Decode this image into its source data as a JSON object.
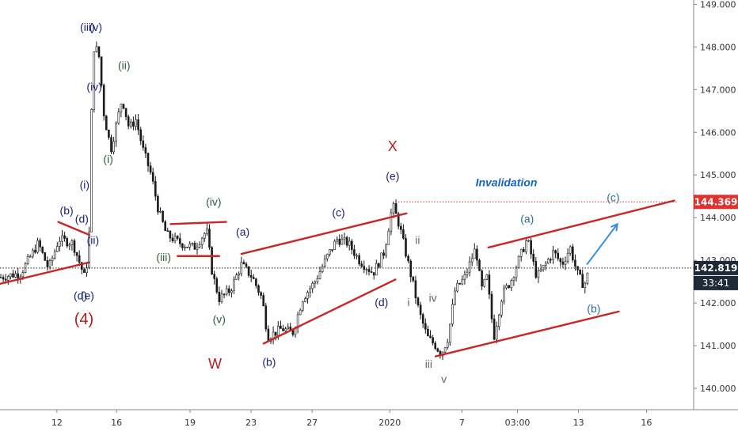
{
  "chart_data": {
    "type": "candlestick",
    "instrument_note": "",
    "y_axis": {
      "position": "right",
      "range": [
        139.5,
        149.1
      ],
      "ticks": [
        {
          "value": 149.0,
          "label": "149.000"
        },
        {
          "value": 148.0,
          "label": "148.000"
        },
        {
          "value": 147.0,
          "label": "147.000"
        },
        {
          "value": 146.0,
          "label": "146.000"
        },
        {
          "value": 145.0,
          "label": "145.000"
        },
        {
          "value": 144.0,
          "label": "144.000"
        },
        {
          "value": 143.0,
          "label": "143.000"
        },
        {
          "value": 142.0,
          "label": "142.000"
        },
        {
          "value": 141.0,
          "label": "141.000"
        },
        {
          "value": 140.0,
          "label": "140.000"
        }
      ]
    },
    "x_axis": {
      "range": [
        0,
        100
      ],
      "ticks": [
        {
          "x": 8.2,
          "label": "12"
        },
        {
          "x": 16.8,
          "label": "16"
        },
        {
          "x": 27.4,
          "label": "19"
        },
        {
          "x": 36.2,
          "label": "23"
        },
        {
          "x": 45.0,
          "label": "27"
        },
        {
          "x": 56.2,
          "label": "2020"
        },
        {
          "x": 66.6,
          "label": "7"
        },
        {
          "x": 74.6,
          "label": "03:00"
        },
        {
          "x": 83.4,
          "label": "13"
        },
        {
          "x": 93.2,
          "label": "16"
        }
      ]
    },
    "price_badges": [
      {
        "value": 144.369,
        "label": "144.369",
        "color": "#e03030"
      },
      {
        "value": 142.819,
        "label": "142.819",
        "color": "#1e2a38"
      }
    ],
    "countdown_badge": {
      "label": "33:41"
    },
    "reference_lines": [
      {
        "value": 144.369,
        "style": "dotted",
        "color": "#d32f2f",
        "x_from": 56.6,
        "x_to": 97.6
      },
      {
        "value": 142.819,
        "style": "dotted",
        "color": "#222222",
        "x_from": 0,
        "x_to": 100
      }
    ],
    "anchors": [
      [
        0,
        142.6
      ],
      [
        3,
        142.7
      ],
      [
        5.5,
        143.4
      ],
      [
        7,
        142.8
      ],
      [
        8.5,
        143.5
      ],
      [
        10.5,
        143.4
      ],
      [
        12.2,
        142.6
      ],
      [
        12.8,
        143.2
      ],
      [
        13.4,
        148.0
      ],
      [
        14.2,
        147.9
      ],
      [
        15.0,
        146.4
      ],
      [
        16.0,
        145.6
      ],
      [
        17.6,
        146.8
      ],
      [
        18.6,
        146.1
      ],
      [
        19.6,
        146.3
      ],
      [
        20.6,
        145.6
      ],
      [
        21.8,
        145.0
      ],
      [
        22.8,
        144.2
      ],
      [
        24.0,
        143.6
      ],
      [
        26.0,
        143.4
      ],
      [
        28.0,
        143.3
      ],
      [
        29.8,
        143.7
      ],
      [
        30.6,
        142.7
      ],
      [
        31.6,
        142.1
      ],
      [
        33.2,
        142.3
      ],
      [
        34.8,
        142.9
      ],
      [
        36.4,
        142.6
      ],
      [
        37.8,
        142.1
      ],
      [
        38.6,
        141.2
      ],
      [
        40.6,
        141.4
      ],
      [
        42.2,
        141.3
      ],
      [
        43.6,
        142.1
      ],
      [
        45.4,
        142.5
      ],
      [
        47.2,
        143.1
      ],
      [
        48.6,
        143.5
      ],
      [
        50.2,
        143.4
      ],
      [
        51.8,
        143.0
      ],
      [
        53.8,
        142.7
      ],
      [
        55.4,
        143.2
      ],
      [
        56.6,
        144.3
      ],
      [
        57.6,
        143.8
      ],
      [
        58.6,
        143.1
      ],
      [
        59.6,
        142.4
      ],
      [
        60.4,
        141.8
      ],
      [
        61.6,
        141.2
      ],
      [
        62.8,
        141.0
      ],
      [
        63.6,
        140.8
      ],
      [
        64.6,
        141.2
      ],
      [
        65.6,
        142.3
      ],
      [
        67.0,
        142.6
      ],
      [
        68.6,
        143.3
      ],
      [
        69.4,
        142.3
      ],
      [
        70.2,
        142.6
      ],
      [
        71.2,
        141.2
      ],
      [
        72.4,
        142.2
      ],
      [
        73.6,
        142.5
      ],
      [
        75.0,
        143.1
      ],
      [
        76.0,
        143.5
      ],
      [
        77.4,
        142.6
      ],
      [
        78.6,
        142.9
      ],
      [
        79.8,
        143.2
      ],
      [
        81.0,
        142.9
      ],
      [
        82.2,
        143.3
      ],
      [
        83.2,
        142.7
      ],
      [
        84.2,
        142.4
      ],
      [
        85.0,
        142.8
      ]
    ],
    "trendlines": [
      {
        "from": [
          0,
          142.45
        ],
        "to": [
          12.8,
          142.95
        ],
        "color": "#c62828"
      },
      {
        "from": [
          8.4,
          143.9
        ],
        "to": [
          12.8,
          143.6
        ],
        "color": "#c62828"
      },
      {
        "from": [
          24.6,
          143.85
        ],
        "to": [
          32.6,
          143.9
        ],
        "color": "#c62828"
      },
      {
        "from": [
          25.6,
          143.1
        ],
        "to": [
          31.6,
          143.1
        ],
        "color": "#c62828"
      },
      {
        "from": [
          34.8,
          143.15
        ],
        "to": [
          58.6,
          144.1
        ],
        "color": "#c62828"
      },
      {
        "from": [
          38.0,
          141.05
        ],
        "to": [
          57.0,
          142.55
        ],
        "color": "#c62828"
      },
      {
        "from": [
          70.4,
          143.3
        ],
        "to": [
          97.2,
          144.4
        ],
        "color": "#c62828"
      },
      {
        "from": [
          62.8,
          140.75
        ],
        "to": [
          89.2,
          141.8
        ],
        "color": "#c62828"
      }
    ],
    "projection_arrow": {
      "from": [
        84.6,
        142.9
      ],
      "to": [
        89.0,
        143.85
      ],
      "color": "#3a8fd4"
    },
    "annotations": [
      {
        "text": "(iii)",
        "x": 12.6,
        "y": 148.45,
        "color": "#1a237e"
      },
      {
        "text": "(v)",
        "x": 13.8,
        "y": 148.45,
        "color": "#1a237e"
      },
      {
        "text": "(ii)",
        "x": 17.9,
        "y": 147.55,
        "color": "#2e5e3e"
      },
      {
        "text": "(iv)",
        "x": 13.6,
        "y": 147.05,
        "color": "#1a237e"
      },
      {
        "text": "(i)",
        "x": 15.6,
        "y": 145.35,
        "color": "#2e5e3e"
      },
      {
        "text": "(i)",
        "x": 12.2,
        "y": 144.75,
        "color": "#1a237e"
      },
      {
        "text": "(b)",
        "x": 9.6,
        "y": 144.15,
        "color": "#1a237e"
      },
      {
        "text": "(d)",
        "x": 11.8,
        "y": 143.95,
        "color": "#1a237e"
      },
      {
        "text": "(ii)",
        "x": 13.4,
        "y": 143.45,
        "color": "#1a237e"
      },
      {
        "text": "(d)",
        "x": 11.6,
        "y": 142.15,
        "color": "#1a237e"
      },
      {
        "text": "(e)",
        "x": 12.6,
        "y": 142.15,
        "color": "#1a237e"
      },
      {
        "text": "(4)",
        "x": 12.1,
        "y": 141.6,
        "color": "#b71c1c",
        "size": 20
      },
      {
        "text": "(iv)",
        "x": 30.8,
        "y": 144.35,
        "color": "#2e5e3e"
      },
      {
        "text": "(iii)",
        "x": 23.6,
        "y": 143.05,
        "color": "#2e5e3e"
      },
      {
        "text": "(v)",
        "x": 31.6,
        "y": 141.6,
        "color": "#2e5e3e"
      },
      {
        "text": "(a)",
        "x": 35.0,
        "y": 143.65,
        "color": "#1a237e"
      },
      {
        "text": "W",
        "x": 31.0,
        "y": 140.55,
        "color": "#b71c1c",
        "size": 18
      },
      {
        "text": "(b)",
        "x": 38.8,
        "y": 140.6,
        "color": "#1a237e"
      },
      {
        "text": "(c)",
        "x": 48.8,
        "y": 144.1,
        "color": "#1a237e"
      },
      {
        "text": "(d)",
        "x": 55.0,
        "y": 142.0,
        "color": "#1a237e"
      },
      {
        "text": "X",
        "x": 56.6,
        "y": 145.65,
        "color": "#b71c1c",
        "size": 18
      },
      {
        "text": "(e)",
        "x": 56.6,
        "y": 144.95,
        "color": "#1a237e"
      },
      {
        "text": "ii",
        "x": 60.2,
        "y": 143.45,
        "color": "#666666"
      },
      {
        "text": "i",
        "x": 58.9,
        "y": 142.0,
        "color": "#666666"
      },
      {
        "text": "iv",
        "x": 62.4,
        "y": 142.1,
        "color": "#666666"
      },
      {
        "text": "iii",
        "x": 61.8,
        "y": 140.55,
        "color": "#666666"
      },
      {
        "text": "v",
        "x": 64.0,
        "y": 140.2,
        "color": "#666666"
      },
      {
        "text": "(a)",
        "x": 76.0,
        "y": 143.95,
        "color": "#2a6f97"
      },
      {
        "text": "(b)",
        "x": 85.6,
        "y": 141.85,
        "color": "#2a6f97"
      },
      {
        "text": "(c)",
        "x": 88.4,
        "y": 144.45,
        "color": "#2a6f97"
      },
      {
        "text": "Invalidation",
        "x": 73.0,
        "y": 144.8,
        "color": "#1565c0",
        "italic": true
      }
    ]
  }
}
